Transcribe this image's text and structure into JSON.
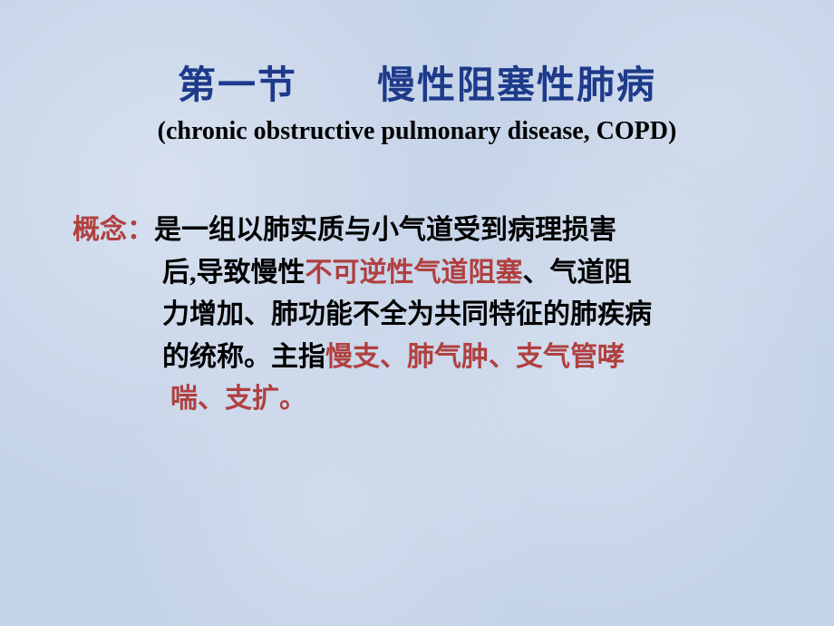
{
  "title": {
    "main": "第一节　　慢性阻塞性肺病",
    "subtitle": "(chronic obstructive pulmonary disease, COPD)"
  },
  "content": {
    "concept_label": "概念：",
    "line1_part1": "是一组以肺实质与小气道受到病理损害",
    "line2_part1": "后,导致慢性",
    "line2_highlight": "不可逆性气道阻塞",
    "line2_part2": "、气道阻",
    "line3": "力增加、肺功能不全为共同特征的肺疾病",
    "line4_part1": "的统称。主指",
    "line4_highlight": "慢支、肺气肿、支气管哮",
    "line5_highlight": "喘、支扩。"
  },
  "colors": {
    "title_color": "#1e3a8a",
    "text_color": "#000000",
    "highlight_color": "#b04040",
    "background_color": "#c5d3e8"
  },
  "typography": {
    "title_fontsize": 42,
    "subtitle_fontsize": 28,
    "body_fontsize": 30
  }
}
